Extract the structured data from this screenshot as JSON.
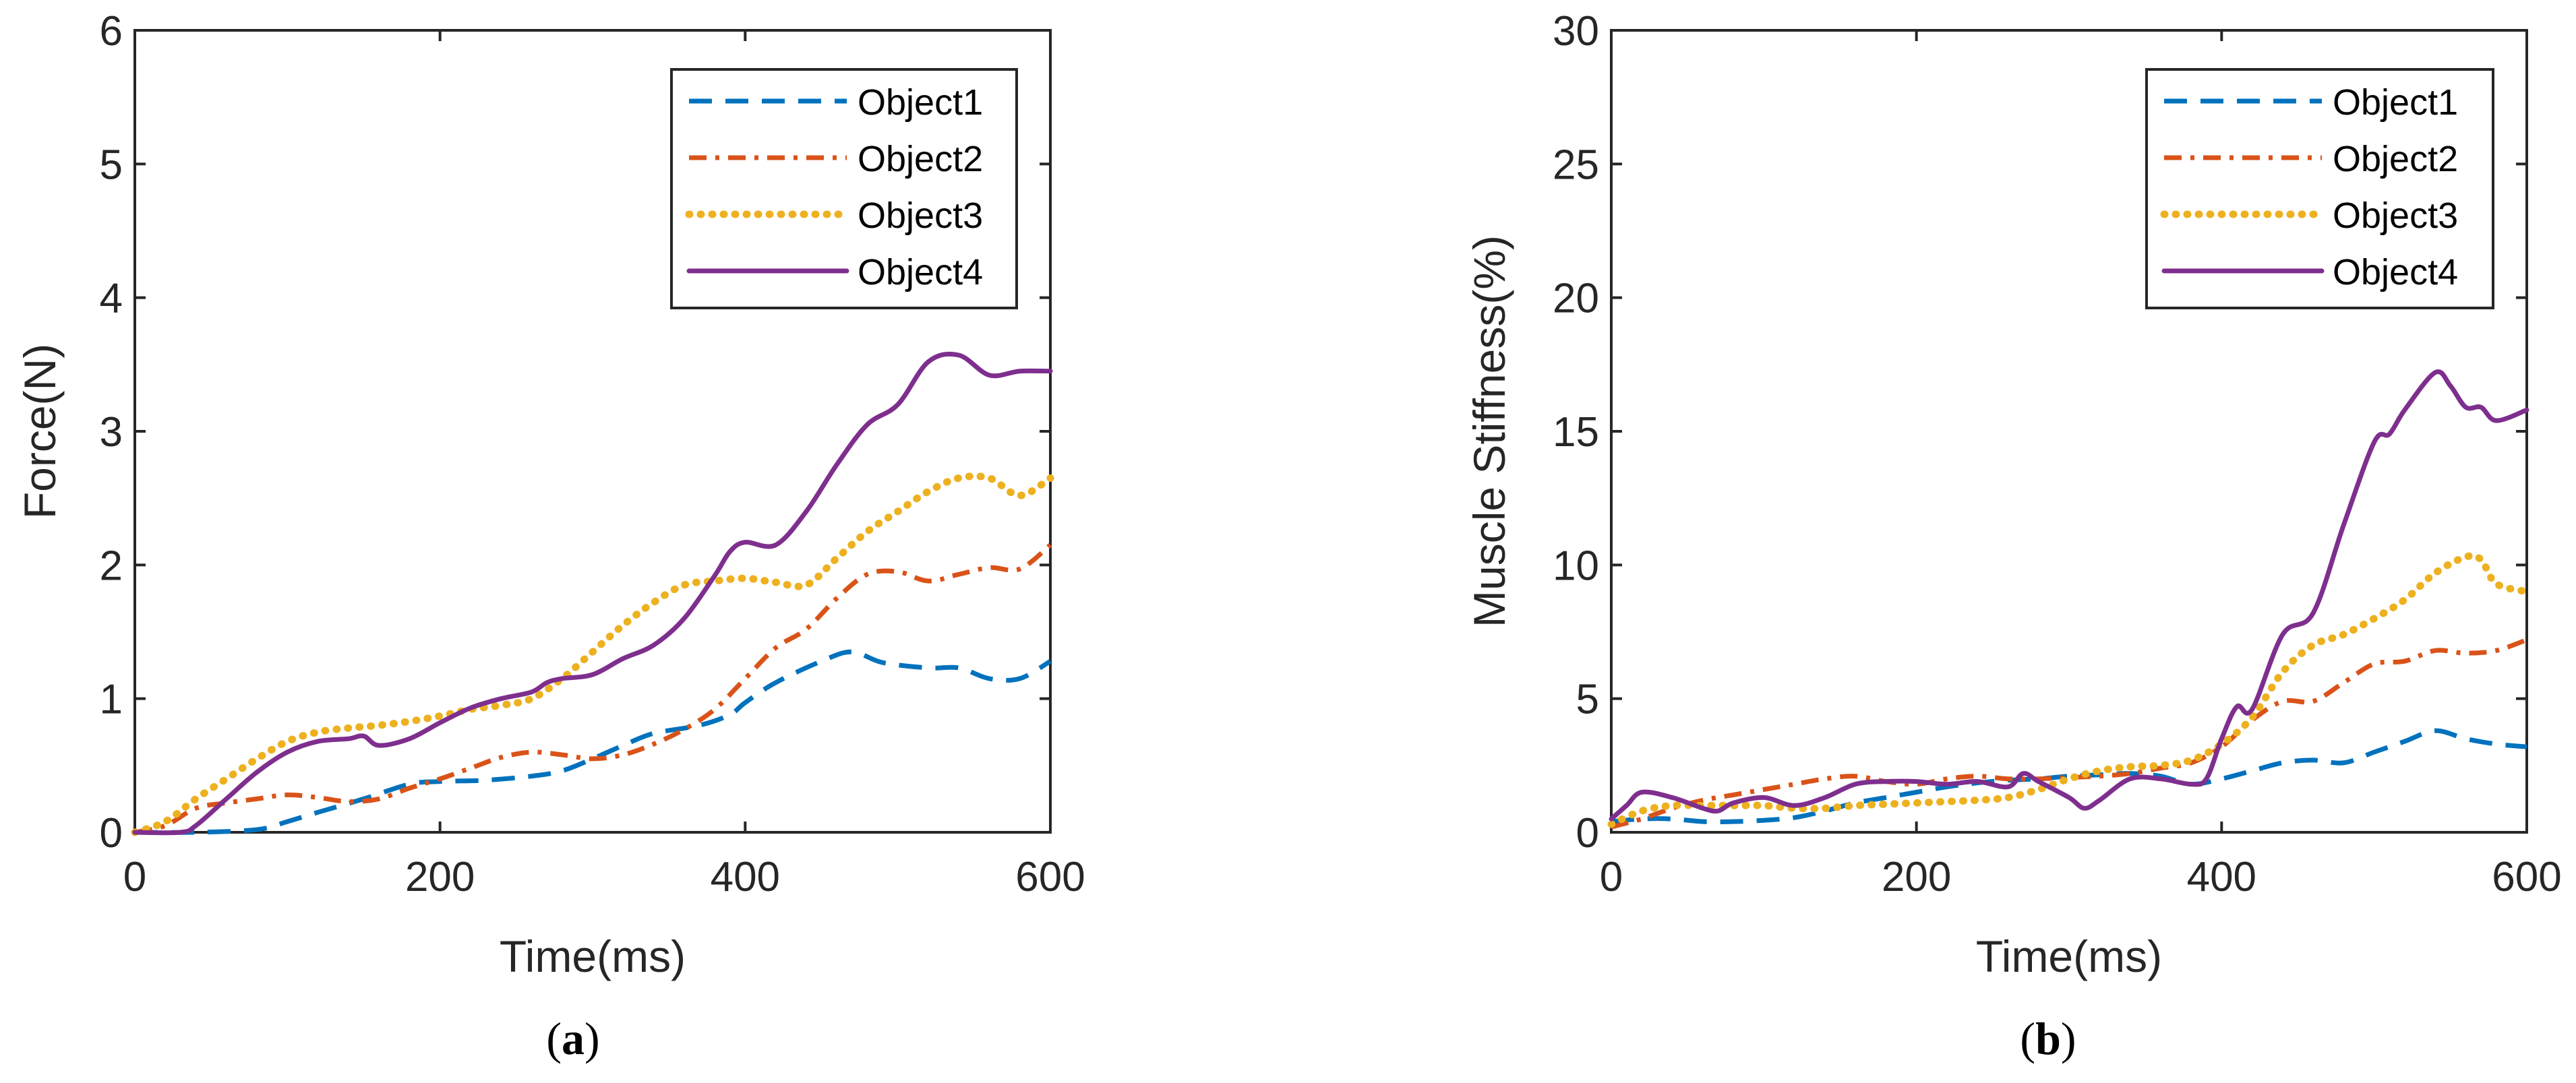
{
  "chart_data": [
    {
      "type": "line",
      "panel_label": "a",
      "xlabel": "Time(ms)",
      "ylabel": "Force(N)",
      "xlim": [
        0,
        600
      ],
      "ylim": [
        0,
        6
      ],
      "xticks": [
        0,
        200,
        400,
        600
      ],
      "yticks": [
        0,
        1,
        2,
        3,
        4,
        5,
        6
      ],
      "grid": false,
      "legend_position": "top-right",
      "series": [
        {
          "name": "Object1",
          "style": "dashed",
          "color": "#0072BD",
          "x": [
            0,
            40,
            80,
            100,
            120,
            150,
            180,
            200,
            230,
            260,
            280,
            300,
            320,
            340,
            370,
            390,
            400,
            420,
            450,
            470,
            490,
            520,
            540,
            560,
            580,
            600
          ],
          "y": [
            0,
            0,
            0.02,
            0.08,
            0.15,
            0.25,
            0.36,
            0.38,
            0.39,
            0.42,
            0.46,
            0.55,
            0.65,
            0.74,
            0.8,
            0.88,
            0.97,
            1.12,
            1.28,
            1.35,
            1.27,
            1.23,
            1.23,
            1.15,
            1.15,
            1.28
          ]
        },
        {
          "name": "Object2",
          "style": "dashdot",
          "color": "#D95319",
          "x": [
            0,
            20,
            40,
            60,
            80,
            100,
            120,
            140,
            160,
            180,
            200,
            220,
            240,
            260,
            280,
            300,
            320,
            340,
            360,
            380,
            400,
            420,
            440,
            460,
            480,
            500,
            520,
            540,
            560,
            580,
            600
          ],
          "y": [
            0,
            0.05,
            0.18,
            0.22,
            0.25,
            0.28,
            0.26,
            0.23,
            0.25,
            0.33,
            0.4,
            0.48,
            0.56,
            0.6,
            0.58,
            0.55,
            0.58,
            0.66,
            0.77,
            0.92,
            1.15,
            1.38,
            1.52,
            1.75,
            1.93,
            1.95,
            1.88,
            1.93,
            1.98,
            1.97,
            2.15
          ]
        },
        {
          "name": "Object3",
          "style": "dotted",
          "color": "#EDB120",
          "x": [
            0,
            20,
            40,
            60,
            80,
            100,
            120,
            140,
            160,
            180,
            200,
            220,
            240,
            260,
            280,
            300,
            320,
            340,
            360,
            380,
            400,
            420,
            440,
            460,
            480,
            500,
            520,
            540,
            560,
            580,
            600
          ],
          "y": [
            0,
            0.08,
            0.25,
            0.4,
            0.55,
            0.68,
            0.75,
            0.78,
            0.8,
            0.83,
            0.87,
            0.92,
            0.95,
            1.0,
            1.15,
            1.35,
            1.55,
            1.72,
            1.85,
            1.88,
            1.9,
            1.87,
            1.85,
            2.05,
            2.25,
            2.4,
            2.55,
            2.65,
            2.65,
            2.52,
            2.65
          ]
        },
        {
          "name": "Object4",
          "style": "solid",
          "color": "#7E2F8E",
          "x": [
            0,
            30,
            40,
            60,
            80,
            100,
            120,
            140,
            150,
            160,
            180,
            200,
            220,
            240,
            260,
            270,
            280,
            300,
            320,
            340,
            360,
            380,
            390,
            400,
            420,
            440,
            460,
            480,
            500,
            520,
            540,
            560,
            580,
            600
          ],
          "y": [
            0,
            0,
            0.05,
            0.25,
            0.45,
            0.6,
            0.68,
            0.7,
            0.72,
            0.65,
            0.7,
            0.82,
            0.93,
            1.0,
            1.05,
            1.12,
            1.15,
            1.18,
            1.3,
            1.4,
            1.6,
            1.92,
            2.1,
            2.17,
            2.15,
            2.4,
            2.75,
            3.05,
            3.2,
            3.52,
            3.57,
            3.42,
            3.45,
            3.45
          ]
        }
      ]
    },
    {
      "type": "line",
      "panel_label": "b",
      "xlabel": "Time(ms)",
      "ylabel": "Muscle Stiffness(%)",
      "xlim": [
        0,
        600
      ],
      "ylim": [
        0,
        30
      ],
      "xticks": [
        0,
        200,
        400,
        600
      ],
      "yticks": [
        0,
        5,
        10,
        15,
        20,
        25,
        30
      ],
      "grid": false,
      "legend_position": "top-right",
      "series": [
        {
          "name": "Object1",
          "style": "dashed",
          "color": "#0072BD",
          "x": [
            0,
            20,
            40,
            60,
            80,
            100,
            120,
            140,
            160,
            180,
            200,
            220,
            240,
            260,
            280,
            300,
            320,
            340,
            360,
            380,
            400,
            420,
            440,
            460,
            480,
            500,
            520,
            540,
            560,
            580,
            600
          ],
          "y": [
            0.4,
            0.5,
            0.5,
            0.4,
            0.4,
            0.45,
            0.55,
            0.8,
            1.1,
            1.3,
            1.5,
            1.7,
            1.85,
            1.95,
            2.0,
            2.1,
            2.15,
            2.2,
            2.1,
            1.8,
            2.0,
            2.3,
            2.6,
            2.7,
            2.6,
            3.0,
            3.4,
            3.8,
            3.5,
            3.3,
            3.2
          ]
        },
        {
          "name": "Object2",
          "style": "dashdot",
          "color": "#D95319",
          "x": [
            0,
            20,
            40,
            60,
            80,
            100,
            120,
            140,
            160,
            180,
            200,
            220,
            240,
            260,
            280,
            300,
            320,
            340,
            360,
            380,
            400,
            420,
            440,
            460,
            480,
            500,
            520,
            540,
            560,
            580,
            600
          ],
          "y": [
            0.2,
            0.5,
            0.9,
            1.2,
            1.4,
            1.6,
            1.8,
            2.0,
            2.1,
            1.9,
            1.8,
            2.0,
            2.1,
            2.0,
            2.0,
            2.05,
            2.1,
            2.2,
            2.4,
            2.6,
            3.2,
            4.2,
            4.9,
            4.9,
            5.6,
            6.3,
            6.4,
            6.8,
            6.7,
            6.8,
            7.2
          ]
        },
        {
          "name": "Object3",
          "style": "dotted",
          "color": "#EDB120",
          "x": [
            0,
            20,
            40,
            60,
            80,
            100,
            120,
            140,
            160,
            180,
            200,
            220,
            240,
            260,
            280,
            300,
            320,
            340,
            360,
            380,
            400,
            420,
            440,
            460,
            480,
            500,
            520,
            540,
            560,
            570,
            580,
            600
          ],
          "y": [
            0.3,
            0.8,
            1.0,
            1.0,
            1.0,
            1.0,
            0.9,
            0.9,
            1.0,
            1.05,
            1.1,
            1.15,
            1.2,
            1.3,
            1.6,
            2.0,
            2.3,
            2.45,
            2.5,
            2.7,
            3.3,
            4.3,
            6.0,
            7.0,
            7.4,
            8.0,
            8.7,
            9.7,
            10.3,
            10.2,
            9.3,
            9.0
          ]
        },
        {
          "name": "Object4",
          "style": "solid",
          "color": "#7E2F8E",
          "x": [
            0,
            10,
            20,
            40,
            60,
            70,
            80,
            100,
            120,
            140,
            160,
            180,
            200,
            220,
            240,
            260,
            270,
            280,
            300,
            310,
            320,
            340,
            360,
            380,
            390,
            400,
            410,
            420,
            440,
            460,
            480,
            500,
            510,
            520,
            540,
            550,
            560,
            570,
            580,
            600
          ],
          "y": [
            0.5,
            1.0,
            1.5,
            1.3,
            0.9,
            0.8,
            1.1,
            1.3,
            1.0,
            1.3,
            1.8,
            1.9,
            1.9,
            1.8,
            1.9,
            1.7,
            2.2,
            1.9,
            1.3,
            0.9,
            1.2,
            2.0,
            2.0,
            1.8,
            2.0,
            3.5,
            4.7,
            4.6,
            7.4,
            8.2,
            11.5,
            14.6,
            14.9,
            15.8,
            17.2,
            16.7,
            15.9,
            15.9,
            15.4,
            15.8
          ]
        }
      ]
    }
  ],
  "panels": [
    {
      "caption": "a"
    },
    {
      "caption": "b"
    }
  ]
}
